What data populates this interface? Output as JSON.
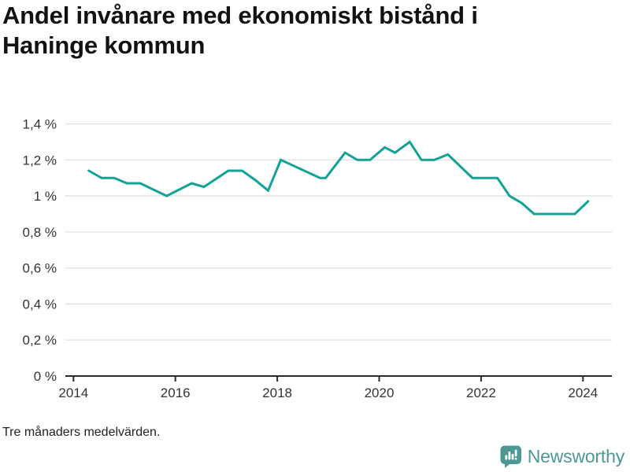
{
  "title": "Andel invånare med ekonomiskt bistånd i Haninge kommun",
  "title_lines": [
    "Andel invånare med ekonomiskt bistånd i",
    "Haninge kommun"
  ],
  "footnote": "Tre månaders medelvärden.",
  "branding": {
    "name": "Newsworthy",
    "icon": "newsworthy-speech-bubble-bar-chart-icon"
  },
  "colors": {
    "line": "#12A296",
    "grid": "#E0E0E0",
    "axis": "#2B2B2B",
    "tick_text": "#333333",
    "title_text": "#121212",
    "footnote_text": "#222222",
    "brand_teal": "#4E9793"
  },
  "chart_data": {
    "type": "line",
    "title": "Andel invånare med ekonomiskt bistånd i Haninge kommun",
    "subtitle_note": "Tre månaders medelvärden.",
    "unit": "%",
    "grid": "horizontal",
    "legend": "none",
    "xlim": [
      2013.84,
      2024.57
    ],
    "ylim": [
      0,
      1.4
    ],
    "x_axis": {
      "tick_years": [
        2014,
        2016,
        2018,
        2020,
        2022,
        2024
      ],
      "tick_labels": [
        "2014",
        "2016",
        "2018",
        "2020",
        "2022",
        "2024"
      ]
    },
    "y_axis": {
      "tick_values": [
        0,
        0.2,
        0.4,
        0.6,
        0.8,
        1.0,
        1.2,
        1.4
      ],
      "tick_labels": [
        "0 %",
        "0,2 %",
        "0,4 %",
        "0,6 %",
        "0,8 %",
        "1 %",
        "1,2 %",
        "1,4 %"
      ]
    },
    "series": [
      {
        "name": "Andel invånare med ekonomiskt bistånd",
        "color": "#12A296",
        "points": [
          [
            2014.3,
            1.14
          ],
          [
            2014.55,
            1.1
          ],
          [
            2014.8,
            1.1
          ],
          [
            2015.05,
            1.07
          ],
          [
            2015.31,
            1.07
          ],
          [
            2015.83,
            1.0
          ],
          [
            2016.32,
            1.07
          ],
          [
            2016.56,
            1.05
          ],
          [
            2017.04,
            1.14
          ],
          [
            2017.31,
            1.14
          ],
          [
            2017.56,
            1.09
          ],
          [
            2017.82,
            1.03
          ],
          [
            2018.07,
            1.2
          ],
          [
            2018.84,
            1.1
          ],
          [
            2018.95,
            1.1
          ],
          [
            2019.33,
            1.24
          ],
          [
            2019.57,
            1.2
          ],
          [
            2019.82,
            1.2
          ],
          [
            2020.11,
            1.27
          ],
          [
            2020.31,
            1.24
          ],
          [
            2020.6,
            1.3
          ],
          [
            2020.83,
            1.2
          ],
          [
            2021.08,
            1.2
          ],
          [
            2021.35,
            1.23
          ],
          [
            2021.83,
            1.1
          ],
          [
            2022.32,
            1.1
          ],
          [
            2022.56,
            1.0
          ],
          [
            2022.8,
            0.96
          ],
          [
            2023.04,
            0.9
          ],
          [
            2023.84,
            0.9
          ],
          [
            2024.1,
            0.97
          ]
        ]
      }
    ]
  }
}
